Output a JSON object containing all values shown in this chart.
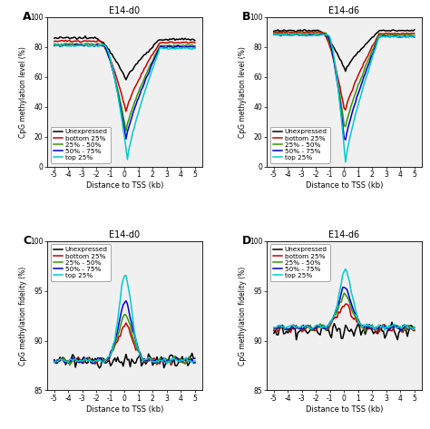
{
  "colors": {
    "unexpressed": "#000000",
    "bottom25": "#cc0000",
    "mid25_50": "#339900",
    "mid50_75": "#0000cc",
    "top25": "#00cccc"
  },
  "legend_labels": [
    "Unexpressed",
    "bottom 25%",
    "25% - 50%",
    "50% - 75%",
    "top 25%"
  ],
  "panel_titles": [
    "E14-d0",
    "E14-d6",
    "E14-d0",
    "E14-d6"
  ],
  "panel_labels": [
    "A",
    "B",
    "C",
    "D"
  ],
  "ylabel_top": "CpG methylation level (%)",
  "ylabel_bottom": "CpG methylation fidelity (%)",
  "xlabel": "Distance to TSS (kb)",
  "bg_color": "#f0f0f0"
}
